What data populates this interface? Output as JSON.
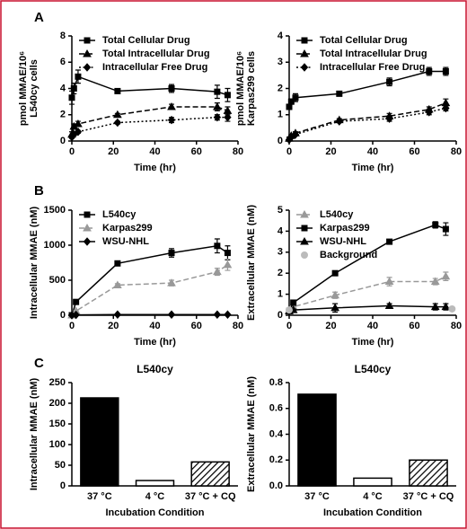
{
  "panel_labels": [
    "A",
    "B",
    "C"
  ],
  "chart_data": [
    {
      "type": "line",
      "ylabel": [
        "pmol MMAE/10⁶",
        "L540cy cells"
      ],
      "xlabel": "Time (hr)",
      "xlim": [
        0,
        80
      ],
      "xticks": [
        0,
        20,
        40,
        60,
        80
      ],
      "ylim": [
        0,
        8
      ],
      "yticks": [
        0,
        2,
        4,
        6,
        8
      ],
      "x": [
        0,
        1,
        3,
        22,
        48,
        70,
        75
      ],
      "series": [
        {
          "name": "Total Cellular Drug",
          "color": "#000000",
          "marker": "square",
          "dash": "solid",
          "values": [
            3.3,
            4.0,
            4.9,
            3.8,
            4.0,
            3.75,
            3.5
          ],
          "errors": [
            0.5,
            0.4,
            0.5,
            0.1,
            0.3,
            0.5,
            0.5
          ]
        },
        {
          "name": "Total Intracellular Drug",
          "color": "#000000",
          "marker": "triangle",
          "dash": "dashed",
          "values": [
            0.5,
            1.1,
            1.3,
            2.0,
            2.6,
            2.6,
            2.3
          ],
          "errors": [
            0.2,
            0.2,
            0.2,
            0.1,
            0.2,
            0.3,
            0.3
          ]
        },
        {
          "name": "Intracellular Free Drug",
          "color": "#000000",
          "marker": "diamond",
          "dash": "dotted",
          "values": [
            0.3,
            0.5,
            0.7,
            1.4,
            1.6,
            1.8,
            1.8
          ],
          "errors": [
            0.1,
            0.1,
            0.1,
            0.1,
            0.2,
            0.2,
            0.3
          ]
        }
      ]
    },
    {
      "type": "line",
      "ylabel": [
        "pmol MMAE/10⁶",
        "Karpas299 cells"
      ],
      "xlabel": "Time (hr)",
      "xlim": [
        0,
        80
      ],
      "xticks": [
        0,
        20,
        40,
        60,
        80
      ],
      "ylim": [
        0,
        4
      ],
      "yticks": [
        0,
        1,
        2,
        3,
        4
      ],
      "x": [
        0,
        1,
        3,
        24,
        48,
        67,
        75
      ],
      "series": [
        {
          "name": "Total Cellular Drug",
          "color": "#000000",
          "marker": "square",
          "dash": "solid",
          "values": [
            1.3,
            1.5,
            1.65,
            1.8,
            2.25,
            2.65,
            2.65
          ],
          "errors": [
            0.1,
            0.1,
            0.15,
            0.05,
            0.15,
            0.15,
            0.15
          ]
        },
        {
          "name": "Total Intracellular Drug",
          "color": "#000000",
          "marker": "triangle",
          "dash": "dashed",
          "values": [
            0.1,
            0.2,
            0.3,
            0.8,
            0.95,
            1.2,
            1.45
          ],
          "errors": [
            0.05,
            0.05,
            0.05,
            0.05,
            0.1,
            0.1,
            0.15
          ]
        },
        {
          "name": "Intracellular Free Drug",
          "color": "#000000",
          "marker": "diamond",
          "dash": "dotted",
          "values": [
            0.05,
            0.15,
            0.25,
            0.75,
            0.85,
            1.1,
            1.25
          ],
          "errors": [
            0.05,
            0.05,
            0.05,
            0.05,
            0.1,
            0.1,
            0.1
          ]
        }
      ]
    },
    {
      "type": "line",
      "ylabel": [
        "Intracellular MMAE (nM)"
      ],
      "xlabel": "Time (hr)",
      "xlim": [
        0,
        80
      ],
      "xticks": [
        0,
        20,
        40,
        60,
        80
      ],
      "ylim": [
        0,
        1500
      ],
      "yticks": [
        0,
        500,
        1000,
        1500
      ],
      "x": [
        0,
        2,
        22,
        48,
        70,
        75
      ],
      "series": [
        {
          "name": "L540cy",
          "color": "#000000",
          "marker": "square",
          "dash": "solid",
          "values": [
            0,
            190,
            740,
            890,
            990,
            890
          ],
          "errors": [
            0,
            20,
            30,
            60,
            100,
            100
          ]
        },
        {
          "name": "Karpas299",
          "color": "#999999",
          "marker": "triangle",
          "dash": "dashed",
          "values": [
            0,
            60,
            430,
            460,
            620,
            720
          ],
          "errors": [
            0,
            10,
            20,
            40,
            50,
            80
          ]
        },
        {
          "name": "WSU-NHL",
          "color": "#000000",
          "marker": "diamond",
          "dash": "solid",
          "values": [
            0,
            5,
            10,
            10,
            10,
            10
          ],
          "errors": [
            0,
            0,
            0,
            0,
            0,
            0
          ]
        }
      ]
    },
    {
      "type": "line",
      "ylabel": [
        "Extracellular MMAE (nM)"
      ],
      "xlabel": "Time (hr)",
      "xlim": [
        0,
        80
      ],
      "xticks": [
        0,
        20,
        40,
        60,
        80
      ],
      "ylim": [
        0,
        5
      ],
      "yticks": [
        0,
        1,
        2,
        3,
        4,
        5
      ],
      "x": [
        0,
        2,
        22,
        48,
        70,
        75
      ],
      "series": [
        {
          "name": "L540cy",
          "color": "#999999",
          "marker": "triangle",
          "dash": "dashed",
          "values": [
            0.2,
            0.4,
            0.95,
            1.6,
            1.6,
            1.85
          ],
          "errors": [
            0.05,
            0.05,
            0.15,
            0.2,
            0.15,
            0.2
          ]
        },
        {
          "name": "Karpas299",
          "color": "#000000",
          "marker": "square",
          "dash": "solid",
          "values": [
            0.2,
            0.6,
            2.0,
            3.5,
            4.3,
            4.1
          ],
          "errors": [
            0.05,
            0.05,
            0.1,
            0.1,
            0.15,
            0.3
          ]
        },
        {
          "name": "WSU-NHL",
          "color": "#000000",
          "marker": "triangle",
          "dash": "solid",
          "values": [
            0.2,
            0.25,
            0.35,
            0.45,
            0.4,
            0.4
          ],
          "errors": [
            0.05,
            0.05,
            0.2,
            0.1,
            0.15,
            0.15
          ]
        },
        {
          "name": "Background",
          "color": "#bbbbbb",
          "marker": "circle",
          "dash": "none",
          "x": [
            0,
            78
          ],
          "values": [
            0.25,
            0.3
          ],
          "errors": [
            0,
            0
          ]
        }
      ]
    },
    {
      "type": "bar",
      "title": "L540cy",
      "ylabel": [
        "Intracellular MMAE (nM)"
      ],
      "xlabel": "Incubation Condition",
      "categories": [
        "37 °C",
        "4 °C",
        "37 °C + CQ"
      ],
      "values": [
        213,
        13,
        58
      ],
      "color": "#000000",
      "patterns": [
        "solid",
        "empty",
        "hatched"
      ],
      "ylim": [
        0,
        250
      ],
      "yticks": [
        0,
        50,
        100,
        150,
        200,
        250
      ]
    },
    {
      "type": "bar",
      "title": "L540cy",
      "ylabel": [
        "Extracellular MMAE (nM)"
      ],
      "xlabel": "Incubation Condition",
      "categories": [
        "37 °C",
        "4 °C",
        "37 °C + CQ"
      ],
      "values": [
        0.71,
        0.06,
        0.2
      ],
      "color": "#000000",
      "patterns": [
        "solid",
        "empty",
        "hatched"
      ],
      "ylim": [
        0,
        0.8
      ],
      "yticks": [
        {
          "value": 0,
          "label": "0.0"
        },
        0.2,
        0.4,
        0.6,
        0.8
      ]
    }
  ]
}
